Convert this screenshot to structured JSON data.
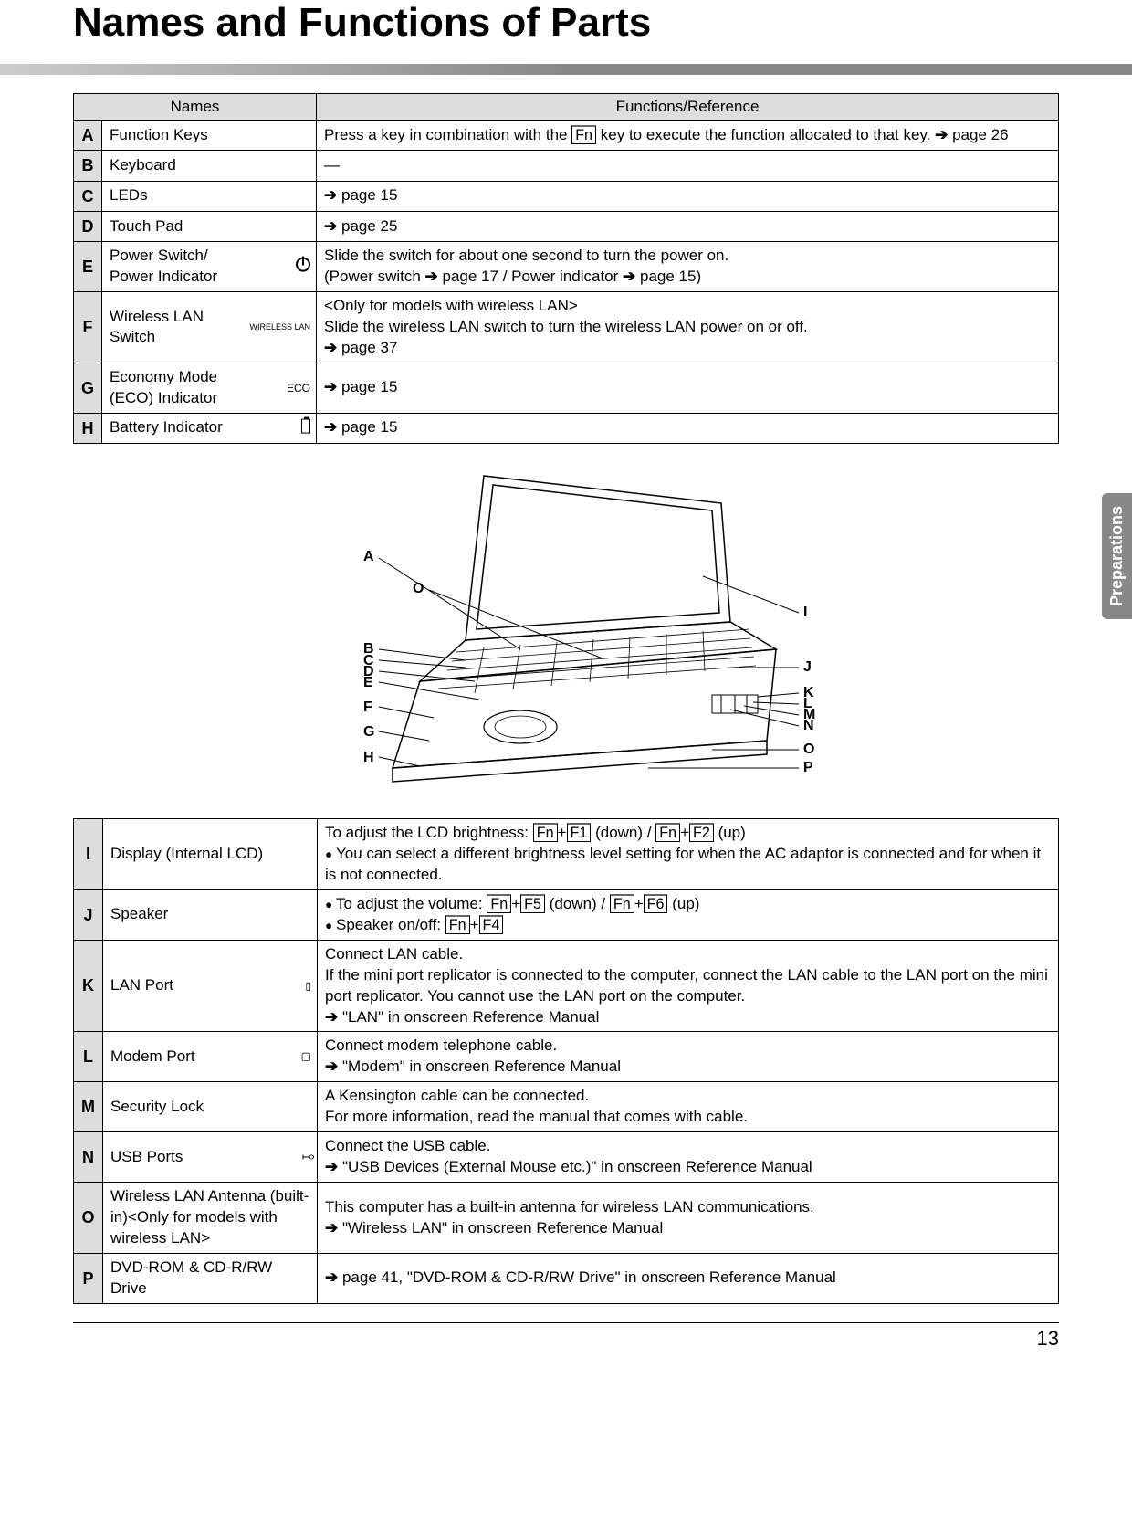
{
  "title": "Names and Functions of Parts",
  "side_tab": "Preparations",
  "page_number": "13",
  "table1": {
    "head_names": "Names",
    "head_funcs": "Functions/Reference",
    "rows": [
      {
        "letter": "A",
        "name": "Function Keys",
        "icon": "",
        "func_html": "Press a key in combination with the <span class='key'>Fn</span> key to execute the function allocated to that key. <span class='arrow'></span>page 26"
      },
      {
        "letter": "B",
        "name": "Keyboard",
        "icon": "",
        "func_html": "—"
      },
      {
        "letter": "C",
        "name": "LEDs",
        "icon": "",
        "func_html": "<span class='arrow'></span>page 15"
      },
      {
        "letter": "D",
        "name": "Touch Pad",
        "icon": "",
        "func_html": "<span class='arrow'></span>page 25"
      },
      {
        "letter": "E",
        "name": "Power Switch/<br>Power Indicator",
        "icon": "power",
        "func_html": "Slide the switch for about one second to turn the power on.<br>(Power switch <span class='arrow'></span>page 17 / Power indicator <span class='arrow'></span>page 15)"
      },
      {
        "letter": "F",
        "name": "Wireless LAN<br>Switch",
        "icon": "WIRELESS LAN",
        "func_html": "&lt;Only for models with wireless LAN&gt;<br>Slide the wireless LAN switch to turn the wireless LAN power on or off.<br><span class='arrow'></span>page 37"
      },
      {
        "letter": "G",
        "name": "Economy Mode<br>(ECO) Indicator",
        "icon": "ECO",
        "func_html": "<span class='arrow'></span>page 15"
      },
      {
        "letter": "H",
        "name": "Battery Indicator",
        "icon": "battery",
        "func_html": "<span class='arrow'></span>page 15"
      }
    ]
  },
  "table2": {
    "rows": [
      {
        "letter": "I",
        "name": "Display (Internal LCD)",
        "icon": "",
        "func_html": "To adjust the LCD brightness: <span class='key'>Fn</span>+<span class='key'>F1</span> (down) / <span class='key'>Fn</span>+<span class='key'>F2</span> (up)<ul class='bul'><li>You can select a different brightness level setting for when the AC adaptor is connected and for when it is not connected.</li></ul>"
      },
      {
        "letter": "J",
        "name": "Speaker",
        "icon": "",
        "func_html": "<ul class='bul'><li>To adjust the volume: <span class='key'>Fn</span>+<span class='key'>F5</span> (down) / <span class='key'>Fn</span>+<span class='key'>F6</span> (up)</li><li>Speaker on/off: <span class='key'>Fn</span>+<span class='key'>F4</span></li></ul>"
      },
      {
        "letter": "K",
        "name": "LAN Port",
        "icon": "lan",
        "func_html": "Connect LAN cable.<br>If the mini port replicator is connected to the computer, connect the LAN cable to the LAN port on the mini port replicator. You cannot use the LAN port on the computer.<br><span class='arrow'></span>\"LAN\" in onscreen Reference Manual"
      },
      {
        "letter": "L",
        "name": "Modem Port",
        "icon": "modem",
        "func_html": "Connect modem telephone cable.<br><span class='arrow'></span>\"Modem\" in onscreen Reference Manual"
      },
      {
        "letter": "M",
        "name": "Security Lock",
        "icon": "",
        "func_html": "A Kensington cable can be connected.<br>For more information, read the manual that comes with cable."
      },
      {
        "letter": "N",
        "name": "USB Ports",
        "icon": "usb",
        "func_html": "Connect the USB cable.<br><span class='arrow'></span>\"USB Devices (External Mouse etc.)\" in onscreen Reference Manual"
      },
      {
        "letter": "O",
        "name": "Wireless LAN Antenna (built-in)&lt;Only for models with wireless LAN&gt;",
        "icon": "",
        "func_html": "This computer has a built-in antenna for wireless LAN communications.<br><span class='arrow'></span>\"Wireless LAN\" in onscreen Reference Manual"
      },
      {
        "letter": "P",
        "name": "DVD-ROM & CD-R/RW Drive",
        "icon": "",
        "func_html": "<span class='arrow'></span>page 41, \"DVD-ROM & CD-R/RW Drive\" in onscreen Reference Manual"
      }
    ]
  },
  "diagram_labels_left": [
    "A",
    "O",
    "B",
    "C",
    "D",
    "E",
    "F",
    "G",
    "H"
  ],
  "diagram_labels_right": [
    "I",
    "J",
    "K",
    "L",
    "M",
    "N",
    "O",
    "P"
  ]
}
